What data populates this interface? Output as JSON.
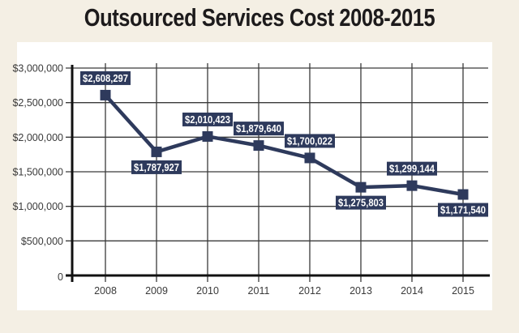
{
  "chart_data": {
    "type": "line",
    "title": "Outsourced Services Cost 2008-2015",
    "xlabel": "",
    "ylabel": "",
    "categories": [
      "2008",
      "2009",
      "2010",
      "2011",
      "2012",
      "2013",
      "2014",
      "2015"
    ],
    "series": [
      {
        "name": "Outsourced Services Cost",
        "values": [
          2608297,
          1787927,
          2010423,
          1879640,
          1700022,
          1275803,
          1299144,
          1171540
        ],
        "labels": [
          "$2,608,297",
          "$1,787,927",
          "$2,010,423",
          "$1,879,640",
          "$1,700,022",
          "$1,275,803",
          "$1,299,144",
          "$1,171,540"
        ],
        "label_positions": [
          "above",
          "below",
          "above",
          "above",
          "above",
          "below",
          "above",
          "below"
        ],
        "color": "#2e3a5c"
      }
    ],
    "ylim": [
      0,
      3000000
    ],
    "yticks": [
      0,
      500000,
      1000000,
      1500000,
      2000000,
      2500000,
      3000000
    ],
    "ytick_labels": [
      "0",
      "$500,000",
      "$1,000,000",
      "$1,500,000",
      "$2,000,000",
      "$2,500,000",
      "$3,000,000"
    ],
    "grid": true,
    "legend": "none"
  },
  "colors": {
    "background": "#f4efe4",
    "panel": "#ffffff",
    "line": "#2e3a5c",
    "label_bg": "#2e3a5c",
    "label_text": "#ffffff",
    "grid": "#3a3a3a",
    "axis": "#111111"
  }
}
